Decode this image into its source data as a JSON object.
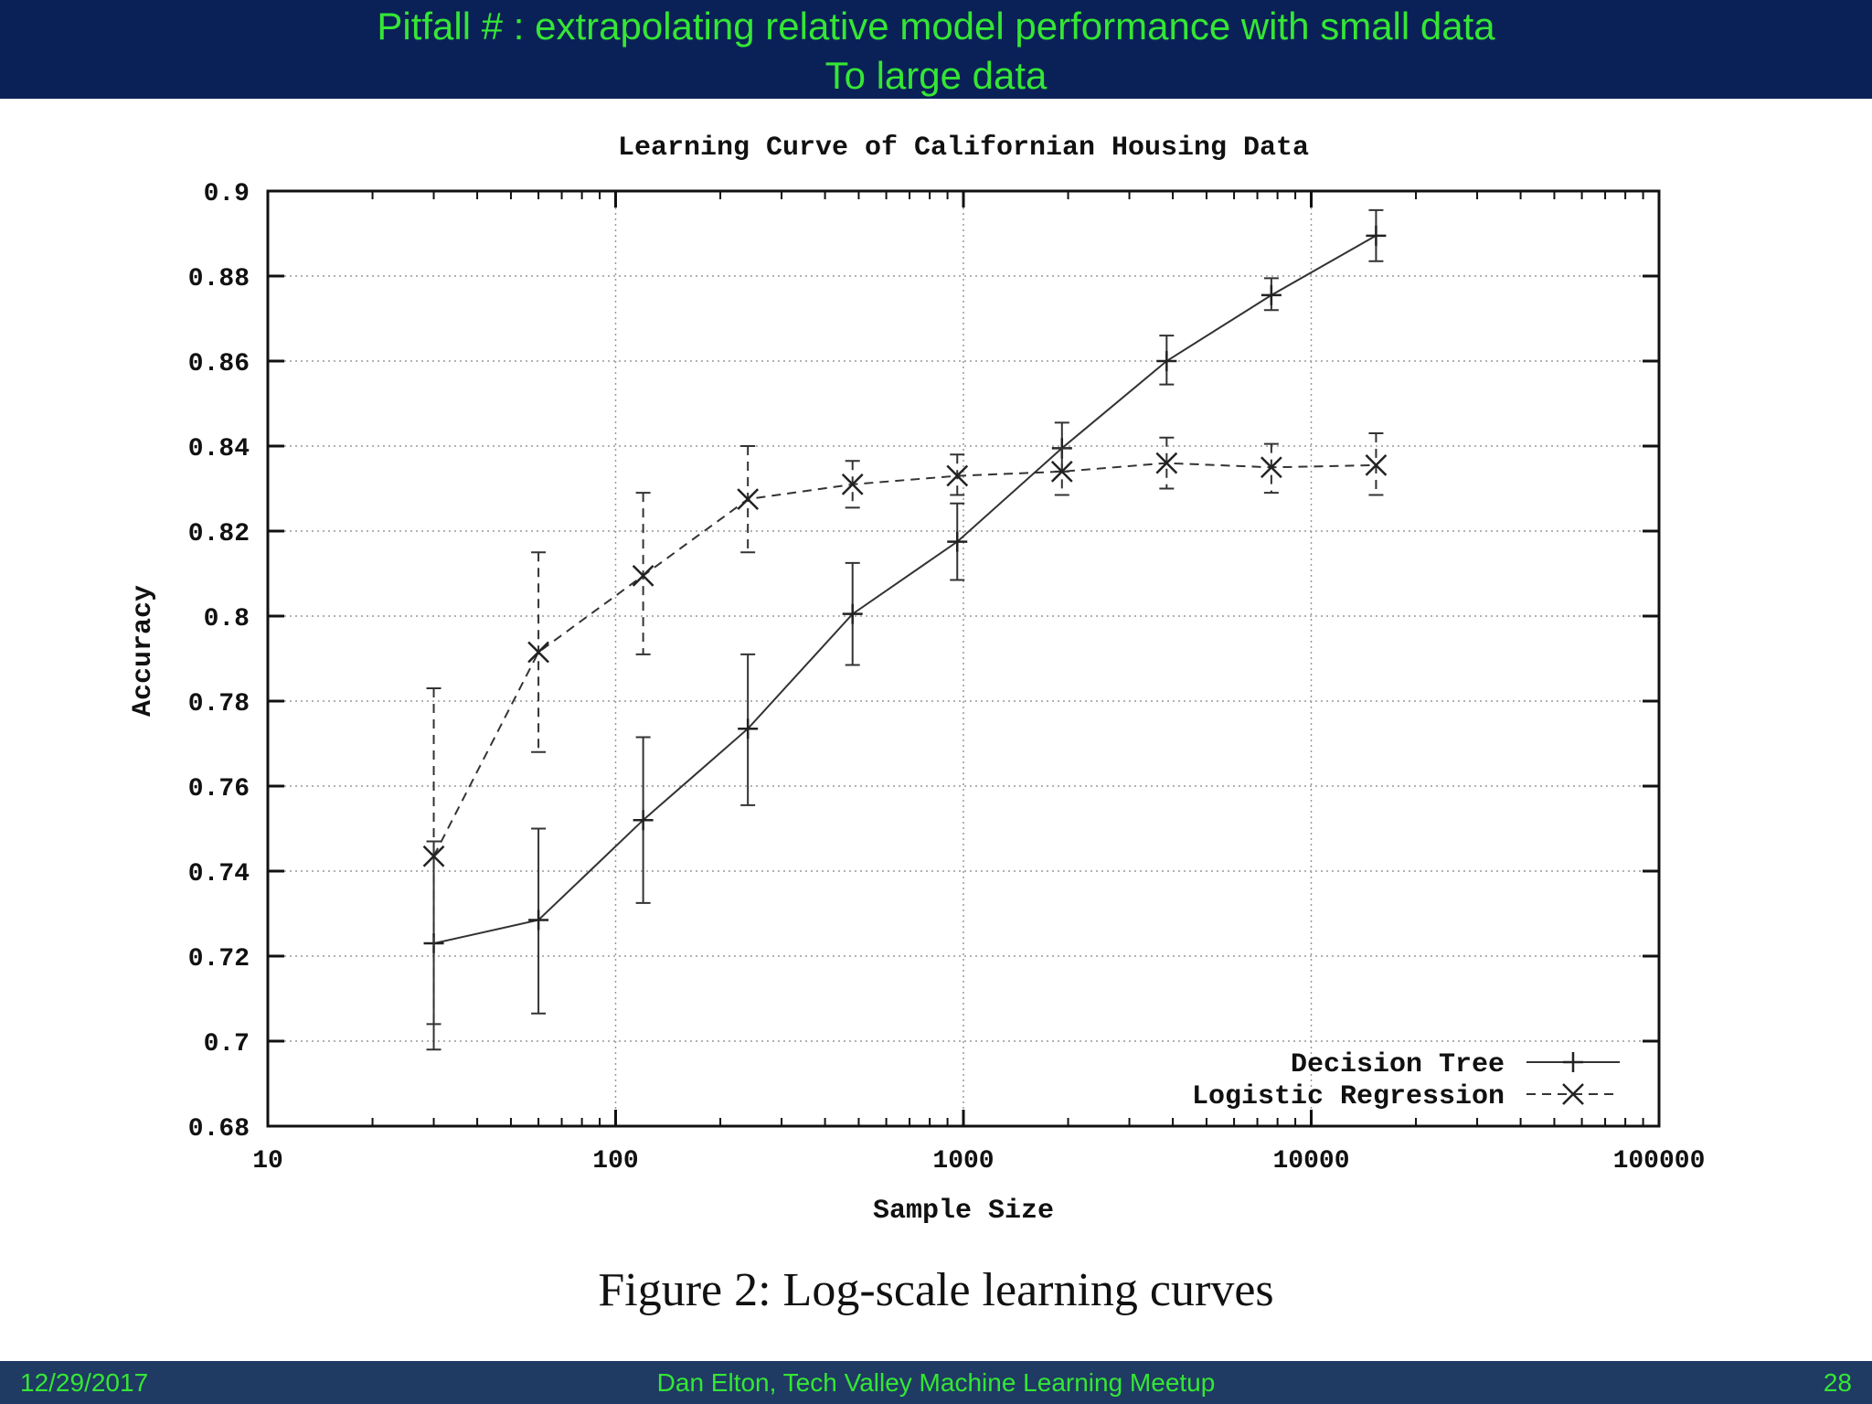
{
  "slide": {
    "title_line_1": "Pitfall # : extrapolating relative model performance with small data",
    "title_line_2": "To large data",
    "caption": "Figure 2: Log-scale learning curves",
    "footer": {
      "date": "12/29/2017",
      "center": "Dan Elton, Tech Valley Machine Learning Meetup",
      "page": "28"
    },
    "colors": {
      "header_bg": "#0a2157",
      "footer_bg": "#1f3a63",
      "text_accent": "#35e635"
    }
  },
  "chart_data": {
    "type": "line",
    "title": "Learning Curve of Californian Housing Data",
    "xlabel": "Sample Size",
    "ylabel": "Accuracy",
    "xscale": "log",
    "xlim": [
      10,
      100000
    ],
    "ylim": [
      0.68,
      0.9
    ],
    "xticks": [
      {
        "value": 10,
        "label": "10"
      },
      {
        "value": 100,
        "label": "100"
      },
      {
        "value": 1000,
        "label": "1000"
      },
      {
        "value": 10000,
        "label": "10000"
      },
      {
        "value": 100000,
        "label": "100000"
      }
    ],
    "yticks": [
      {
        "value": 0.68,
        "label": "0.68"
      },
      {
        "value": 0.7,
        "label": "0.7"
      },
      {
        "value": 0.72,
        "label": "0.72"
      },
      {
        "value": 0.74,
        "label": "0.74"
      },
      {
        "value": 0.76,
        "label": "0.76"
      },
      {
        "value": 0.78,
        "label": "0.78"
      },
      {
        "value": 0.8,
        "label": "0.8"
      },
      {
        "value": 0.82,
        "label": "0.82"
      },
      {
        "value": 0.84,
        "label": "0.84"
      },
      {
        "value": 0.86,
        "label": "0.86"
      },
      {
        "value": 0.88,
        "label": "0.88"
      },
      {
        "value": 0.9,
        "label": "0.9"
      }
    ],
    "grid": true,
    "legend_position": "bottom-right",
    "series": [
      {
        "name": "Decision Tree",
        "style": "solid",
        "marker": "plus",
        "x": [
          30,
          60,
          120,
          240,
          480,
          960,
          1920,
          3840,
          7680,
          15360
        ],
        "y": [
          0.723,
          0.7285,
          0.752,
          0.7735,
          0.8005,
          0.8175,
          0.8395,
          0.86,
          0.8755,
          0.8895
        ],
        "err_low": [
          0.698,
          0.7065,
          0.7325,
          0.7555,
          0.7885,
          0.8085,
          0.834,
          0.8545,
          0.872,
          0.8835
        ],
        "err_high": [
          0.747,
          0.75,
          0.7715,
          0.791,
          0.8125,
          0.8265,
          0.8455,
          0.866,
          0.8795,
          0.8955
        ]
      },
      {
        "name": "Logistic Regression",
        "style": "dashed",
        "marker": "x",
        "x": [
          30,
          60,
          120,
          240,
          480,
          960,
          1920,
          3840,
          7680,
          15360
        ],
        "y": [
          0.7435,
          0.7915,
          0.8095,
          0.8275,
          0.831,
          0.833,
          0.834,
          0.836,
          0.835,
          0.8355
        ],
        "err_low": [
          0.704,
          0.768,
          0.791,
          0.815,
          0.8255,
          0.8285,
          0.8285,
          0.83,
          0.829,
          0.8285
        ],
        "err_high": [
          0.783,
          0.815,
          0.829,
          0.84,
          0.8365,
          0.838,
          0.8395,
          0.842,
          0.8405,
          0.843
        ]
      }
    ]
  }
}
